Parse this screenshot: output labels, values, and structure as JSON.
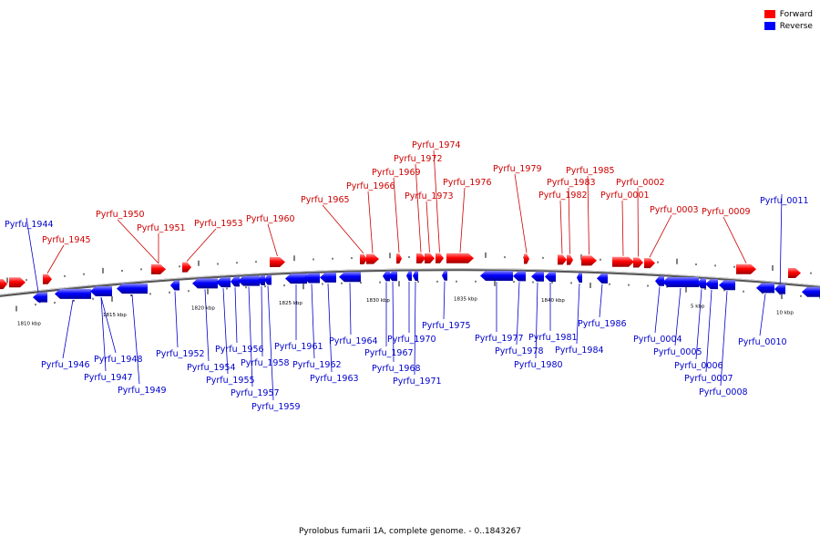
{
  "legend": {
    "forward": {
      "label": "Forward",
      "color": "#ff0000"
    },
    "reverse": {
      "label": "Reverse",
      "color": "#0000ff"
    }
  },
  "caption": "Pyrolobus fumarii 1A, complete genome. - 0..1843267",
  "axis_labels": [
    "1810 kbp",
    "1815 kbp",
    "1820 kbp",
    "1825 kbp",
    "1830 kbp",
    "1835 kbp",
    "1840 kbp",
    "5 kbp",
    "10 kbp"
  ],
  "genes": {
    "forward": [
      "Pyrfu_1945",
      "Pyrfu_1950",
      "Pyrfu_1951",
      "Pyrfu_1953",
      "Pyrfu_1960",
      "Pyrfu_1965",
      "Pyrfu_1966",
      "Pyrfu_1969",
      "Pyrfu_1972",
      "Pyrfu_1974",
      "Pyrfu_1973",
      "Pyrfu_1976",
      "Pyrfu_1979",
      "Pyrfu_1982",
      "Pyrfu_1983",
      "Pyrfu_1985",
      "Pyrfu_0001",
      "Pyrfu_0002",
      "Pyrfu_0003",
      "Pyrfu_0009"
    ],
    "reverse": [
      "Pyrfu_1944",
      "Pyrfu_0011",
      "Pyrfu_1946",
      "Pyrfu_1947",
      "Pyrfu_1948",
      "Pyrfu_1949",
      "Pyrfu_1952",
      "Pyrfu_1954",
      "Pyrfu_1955",
      "Pyrfu_1956",
      "Pyrfu_1957",
      "Pyrfu_1958",
      "Pyrfu_1959",
      "Pyrfu_1961",
      "Pyrfu_1962",
      "Pyrfu_1963",
      "Pyrfu_1964",
      "Pyrfu_1967",
      "Pyrfu_1968",
      "Pyrfu_1970",
      "Pyrfu_1971",
      "Pyrfu_1975",
      "Pyrfu_1977",
      "Pyrfu_1978",
      "Pyrfu_1980",
      "Pyrfu_1981",
      "Pyrfu_1984",
      "Pyrfu_1986",
      "Pyrfu_0004",
      "Pyrfu_0005",
      "Pyrfu_0006",
      "Pyrfu_0007",
      "Pyrfu_0008",
      "Pyrfu_0010"
    ]
  }
}
